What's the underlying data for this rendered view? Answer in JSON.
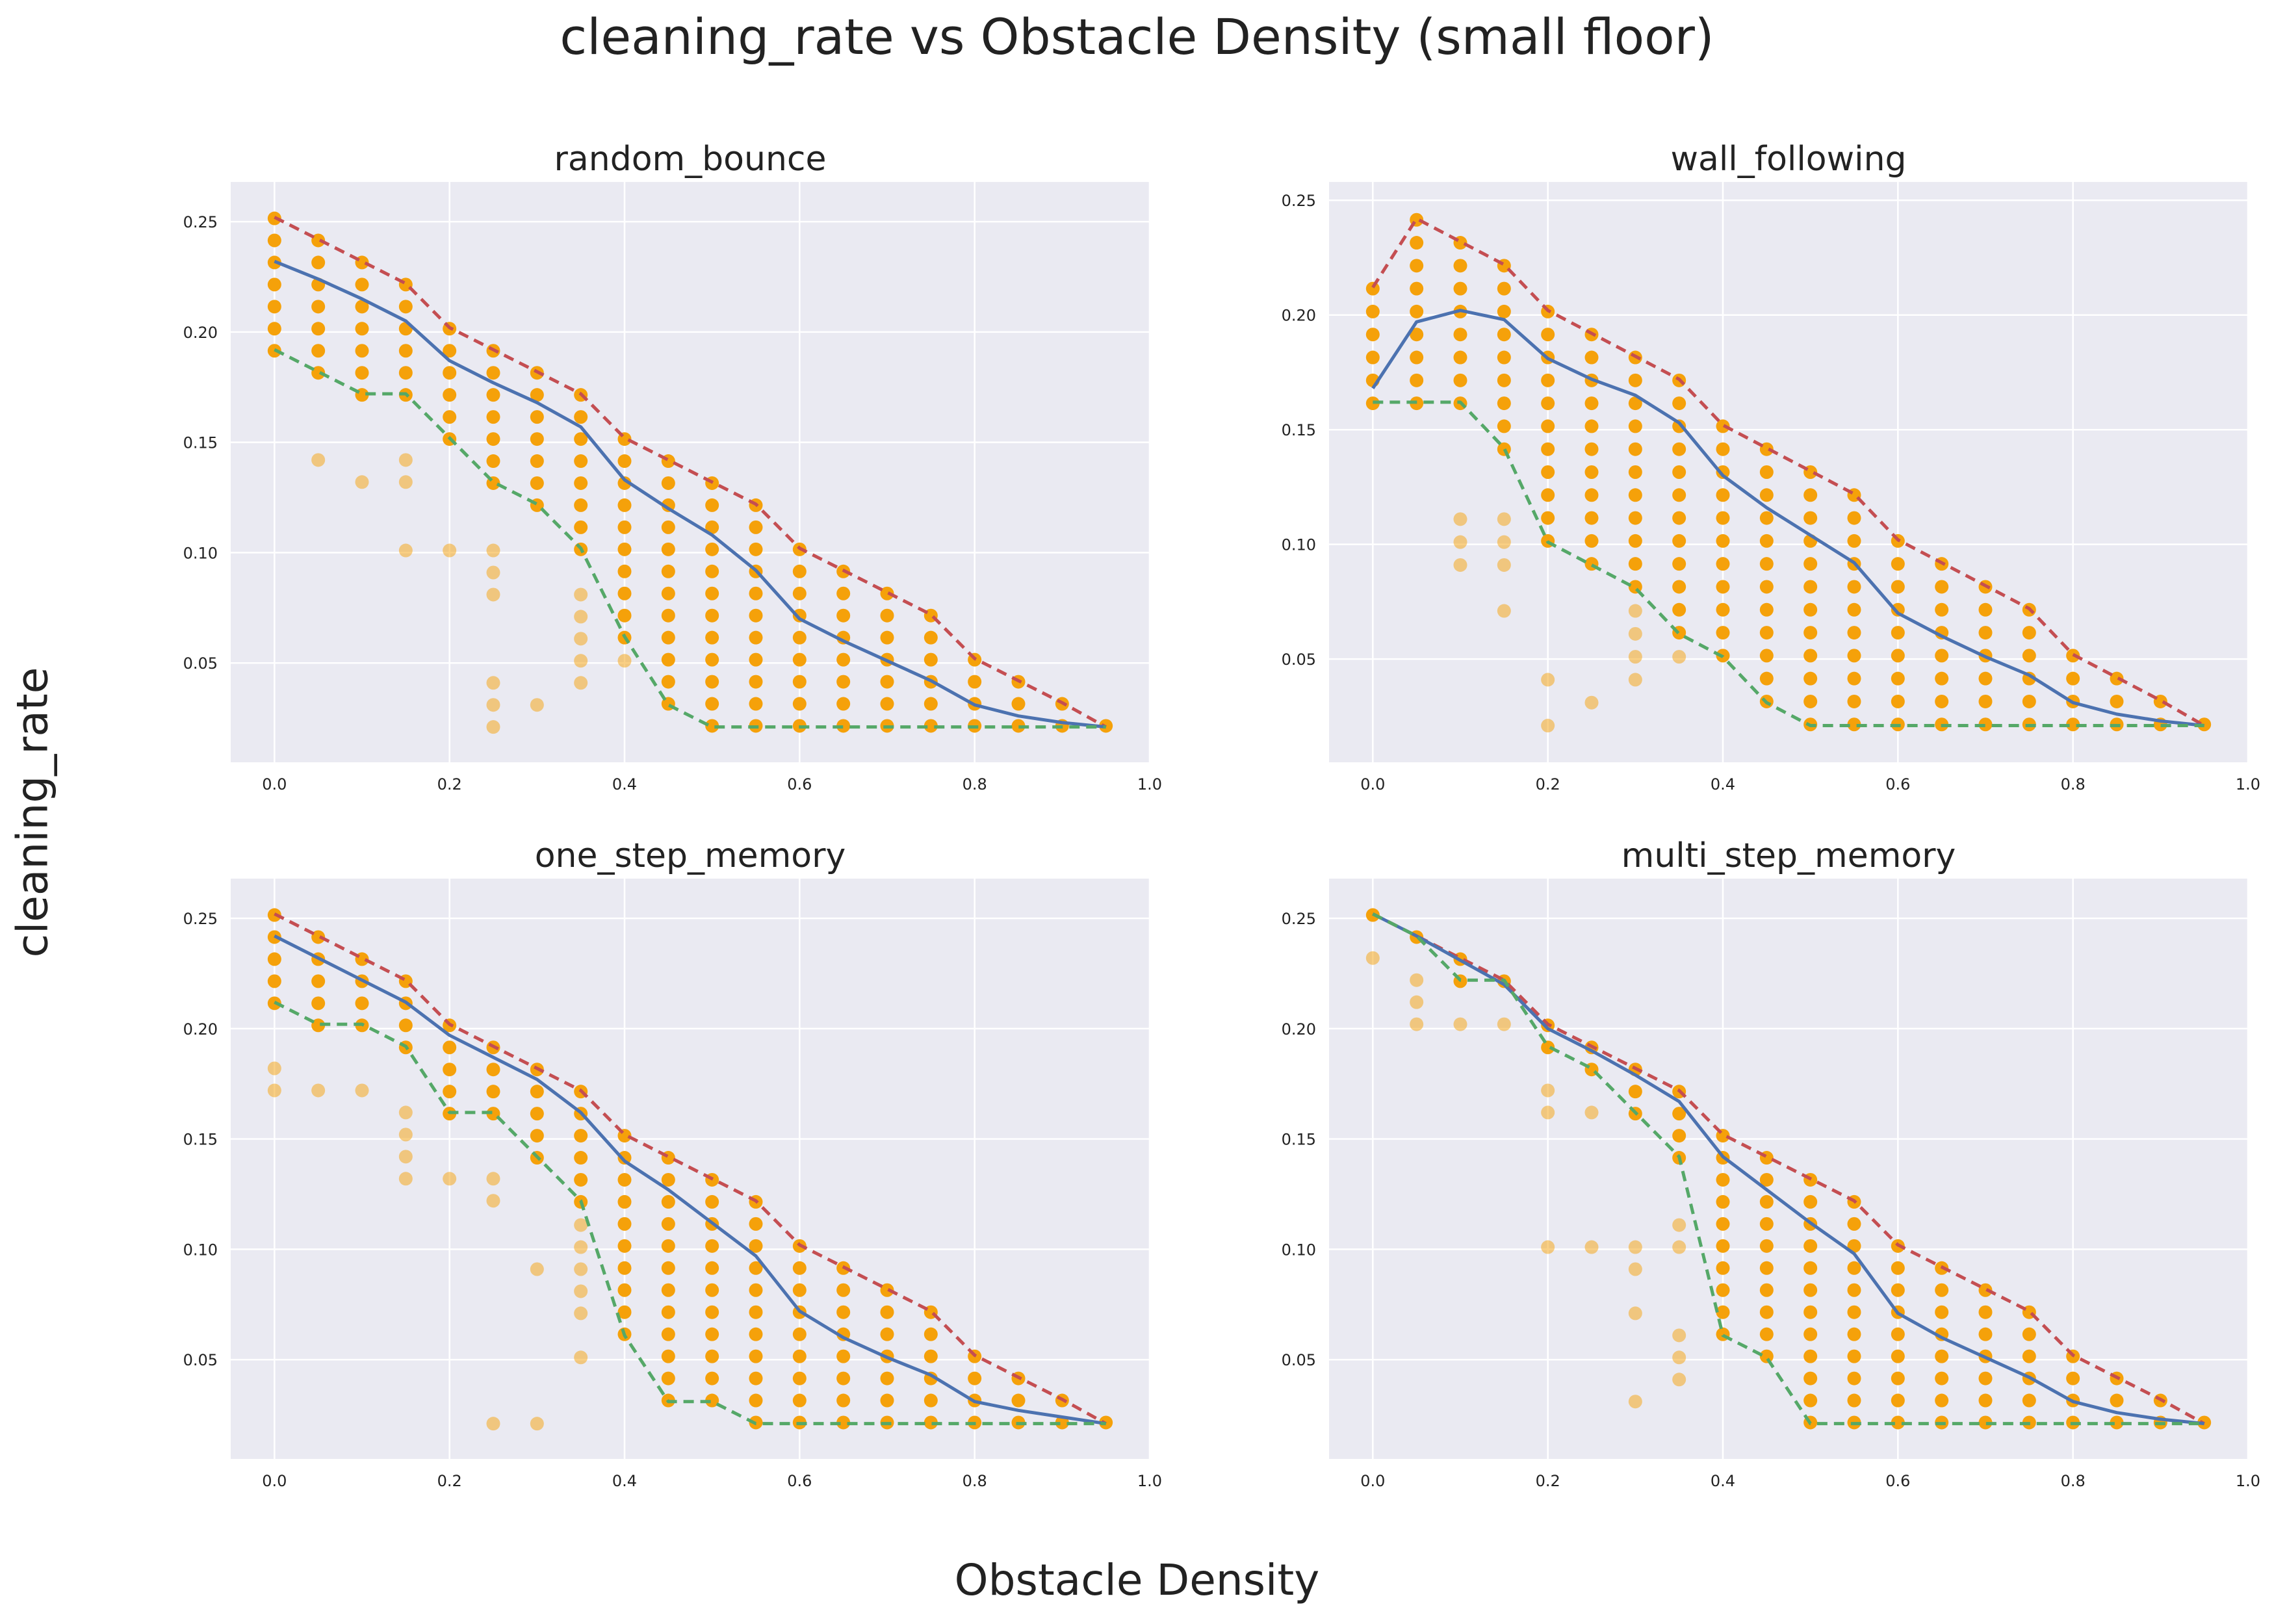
{
  "figure": {
    "title": "cleaning_rate vs Obstacle Density (small floor)",
    "xlabel": "Obstacle Density",
    "ylabel": "cleaning_rate"
  },
  "colors": {
    "background": "#ffffff",
    "plot_bg": "#eaeaf2",
    "grid": "#ffffff",
    "points": "#f5a10a",
    "max_line": "#c44e52",
    "mean_line": "#4c72b0",
    "min_line": "#55a868"
  },
  "chart_data": [
    {
      "type": "scatter",
      "title": "random_bounce",
      "xlim": [
        -0.05,
        1.0
      ],
      "ylim": [
        0.005,
        0.268
      ],
      "xticks": [
        "0.0",
        "0.2",
        "0.4",
        "0.6",
        "0.8",
        "1.0"
      ],
      "yticks": [
        "0.05",
        "0.10",
        "0.15",
        "0.20",
        "0.25"
      ],
      "grid": true,
      "x": [
        0.0,
        0.05,
        0.1,
        0.15,
        0.2,
        0.25,
        0.3,
        0.35,
        0.4,
        0.45,
        0.5,
        0.55,
        0.6,
        0.65,
        0.7,
        0.75,
        0.8,
        0.85,
        0.9,
        0.95
      ],
      "series": [
        {
          "values": [
            0.252,
            0.242,
            0.232,
            0.222,
            0.202,
            0.192,
            0.182,
            0.172,
            0.152,
            0.142,
            0.132,
            0.122,
            0.102,
            0.092,
            0.082,
            0.072,
            0.052,
            0.042,
            0.032,
            0.021
          ]
        },
        {
          "values": [
            0.232,
            0.224,
            0.215,
            0.205,
            0.187,
            0.177,
            0.168,
            0.157,
            0.133,
            0.12,
            0.108,
            0.092,
            0.07,
            0.06,
            0.051,
            0.042,
            0.031,
            0.026,
            0.023,
            0.021
          ]
        },
        {
          "values": [
            0.192,
            0.182,
            0.172,
            0.172,
            0.152,
            0.132,
            0.122,
            0.102,
            0.062,
            0.031,
            0.021,
            0.021,
            0.021,
            0.021,
            0.021,
            0.021,
            0.021,
            0.021,
            0.021,
            0.021
          ]
        }
      ],
      "faint_points": [
        [
          0.05,
          0.142
        ],
        [
          0.1,
          0.132
        ],
        [
          0.15,
          0.132
        ],
        [
          0.15,
          0.142
        ],
        [
          0.15,
          0.101
        ],
        [
          0.2,
          0.101
        ],
        [
          0.25,
          0.101
        ],
        [
          0.25,
          0.091
        ],
        [
          0.25,
          0.081
        ],
        [
          0.25,
          0.041
        ],
        [
          0.25,
          0.031
        ],
        [
          0.25,
          0.021
        ],
        [
          0.3,
          0.031
        ],
        [
          0.35,
          0.081
        ],
        [
          0.35,
          0.071
        ],
        [
          0.35,
          0.061
        ],
        [
          0.35,
          0.051
        ],
        [
          0.35,
          0.041
        ],
        [
          0.4,
          0.051
        ]
      ]
    },
    {
      "type": "scatter",
      "title": "wall_following",
      "xlim": [
        -0.05,
        1.0
      ],
      "ylim": [
        0.005,
        0.258
      ],
      "xticks": [
        "0.0",
        "0.2",
        "0.4",
        "0.6",
        "0.8",
        "1.0"
      ],
      "yticks": [
        "0.05",
        "0.10",
        "0.15",
        "0.20",
        "0.25"
      ],
      "grid": true,
      "x": [
        0.0,
        0.05,
        0.1,
        0.15,
        0.2,
        0.25,
        0.3,
        0.35,
        0.4,
        0.45,
        0.5,
        0.55,
        0.6,
        0.65,
        0.7,
        0.75,
        0.8,
        0.85,
        0.9,
        0.95
      ],
      "series": [
        {
          "values": [
            0.212,
            0.242,
            0.232,
            0.222,
            0.202,
            0.192,
            0.182,
            0.172,
            0.152,
            0.142,
            0.132,
            0.122,
            0.102,
            0.092,
            0.082,
            0.072,
            0.052,
            0.042,
            0.032,
            0.021
          ]
        },
        {
          "values": [
            0.168,
            0.197,
            0.202,
            0.198,
            0.181,
            0.172,
            0.165,
            0.153,
            0.13,
            0.116,
            0.104,
            0.092,
            0.07,
            0.06,
            0.051,
            0.043,
            0.031,
            0.026,
            0.023,
            0.021
          ]
        },
        {
          "values": [
            0.162,
            0.162,
            0.162,
            0.142,
            0.101,
            0.091,
            0.081,
            0.061,
            0.051,
            0.031,
            0.021,
            0.021,
            0.021,
            0.021,
            0.021,
            0.021,
            0.021,
            0.021,
            0.021,
            0.021
          ]
        }
      ],
      "faint_points": [
        [
          0.1,
          0.111
        ],
        [
          0.1,
          0.101
        ],
        [
          0.1,
          0.091
        ],
        [
          0.15,
          0.111
        ],
        [
          0.15,
          0.101
        ],
        [
          0.15,
          0.091
        ],
        [
          0.15,
          0.071
        ],
        [
          0.2,
          0.041
        ],
        [
          0.2,
          0.021
        ],
        [
          0.25,
          0.031
        ],
        [
          0.3,
          0.071
        ],
        [
          0.3,
          0.061
        ],
        [
          0.3,
          0.051
        ],
        [
          0.3,
          0.041
        ],
        [
          0.35,
          0.051
        ]
      ]
    },
    {
      "type": "scatter",
      "title": "one_step_memory",
      "xlim": [
        -0.05,
        1.0
      ],
      "ylim": [
        0.005,
        0.268
      ],
      "xticks": [
        "0.0",
        "0.2",
        "0.4",
        "0.6",
        "0.8",
        "1.0"
      ],
      "yticks": [
        "0.05",
        "0.10",
        "0.15",
        "0.20",
        "0.25"
      ],
      "grid": true,
      "x": [
        0.0,
        0.05,
        0.1,
        0.15,
        0.2,
        0.25,
        0.3,
        0.35,
        0.4,
        0.45,
        0.5,
        0.55,
        0.6,
        0.65,
        0.7,
        0.75,
        0.8,
        0.85,
        0.9,
        0.95
      ],
      "series": [
        {
          "values": [
            0.252,
            0.242,
            0.232,
            0.222,
            0.202,
            0.192,
            0.182,
            0.172,
            0.152,
            0.142,
            0.132,
            0.122,
            0.102,
            0.092,
            0.082,
            0.072,
            0.052,
            0.042,
            0.032,
            0.021
          ]
        },
        {
          "values": [
            0.242,
            0.232,
            0.222,
            0.212,
            0.197,
            0.187,
            0.177,
            0.162,
            0.14,
            0.127,
            0.112,
            0.097,
            0.072,
            0.06,
            0.051,
            0.043,
            0.031,
            0.027,
            0.024,
            0.021
          ]
        },
        {
          "values": [
            0.212,
            0.202,
            0.202,
            0.192,
            0.162,
            0.162,
            0.142,
            0.122,
            0.061,
            0.031,
            0.031,
            0.021,
            0.021,
            0.021,
            0.021,
            0.021,
            0.021,
            0.021,
            0.021,
            0.021
          ]
        }
      ],
      "faint_points": [
        [
          0.0,
          0.182
        ],
        [
          0.0,
          0.172
        ],
        [
          0.05,
          0.172
        ],
        [
          0.1,
          0.172
        ],
        [
          0.15,
          0.162
        ],
        [
          0.15,
          0.152
        ],
        [
          0.15,
          0.142
        ],
        [
          0.15,
          0.132
        ],
        [
          0.2,
          0.132
        ],
        [
          0.25,
          0.132
        ],
        [
          0.25,
          0.122
        ],
        [
          0.25,
          0.021
        ],
        [
          0.3,
          0.091
        ],
        [
          0.3,
          0.021
        ],
        [
          0.35,
          0.111
        ],
        [
          0.35,
          0.101
        ],
        [
          0.35,
          0.091
        ],
        [
          0.35,
          0.081
        ],
        [
          0.35,
          0.071
        ],
        [
          0.35,
          0.051
        ]
      ]
    },
    {
      "type": "scatter",
      "title": "multi_step_memory",
      "xlim": [
        -0.05,
        1.0
      ],
      "ylim": [
        0.005,
        0.268
      ],
      "xticks": [
        "0.0",
        "0.2",
        "0.4",
        "0.6",
        "0.8",
        "1.0"
      ],
      "yticks": [
        "0.05",
        "0.10",
        "0.15",
        "0.20",
        "0.25"
      ],
      "grid": true,
      "x": [
        0.0,
        0.05,
        0.1,
        0.15,
        0.2,
        0.25,
        0.3,
        0.35,
        0.4,
        0.45,
        0.5,
        0.55,
        0.6,
        0.65,
        0.7,
        0.75,
        0.8,
        0.85,
        0.9,
        0.95
      ],
      "series": [
        {
          "values": [
            0.252,
            0.242,
            0.232,
            0.222,
            0.202,
            0.192,
            0.182,
            0.172,
            0.152,
            0.142,
            0.132,
            0.122,
            0.102,
            0.092,
            0.082,
            0.072,
            0.052,
            0.042,
            0.032,
            0.021
          ]
        },
        {
          "values": [
            0.252,
            0.242,
            0.231,
            0.22,
            0.2,
            0.19,
            0.179,
            0.167,
            0.142,
            0.127,
            0.112,
            0.098,
            0.071,
            0.06,
            0.051,
            0.042,
            0.031,
            0.026,
            0.023,
            0.021
          ]
        },
        {
          "values": [
            0.252,
            0.242,
            0.222,
            0.222,
            0.192,
            0.182,
            0.162,
            0.142,
            0.061,
            0.051,
            0.021,
            0.021,
            0.021,
            0.021,
            0.021,
            0.021,
            0.021,
            0.021,
            0.021,
            0.021
          ]
        }
      ],
      "faint_points": [
        [
          0.0,
          0.232
        ],
        [
          0.05,
          0.222
        ],
        [
          0.05,
          0.212
        ],
        [
          0.05,
          0.202
        ],
        [
          0.1,
          0.202
        ],
        [
          0.15,
          0.202
        ],
        [
          0.2,
          0.172
        ],
        [
          0.2,
          0.162
        ],
        [
          0.2,
          0.101
        ],
        [
          0.25,
          0.162
        ],
        [
          0.25,
          0.101
        ],
        [
          0.3,
          0.101
        ],
        [
          0.3,
          0.091
        ],
        [
          0.3,
          0.071
        ],
        [
          0.3,
          0.031
        ],
        [
          0.35,
          0.111
        ],
        [
          0.35,
          0.101
        ],
        [
          0.35,
          0.061
        ],
        [
          0.35,
          0.051
        ],
        [
          0.35,
          0.041
        ]
      ]
    }
  ]
}
